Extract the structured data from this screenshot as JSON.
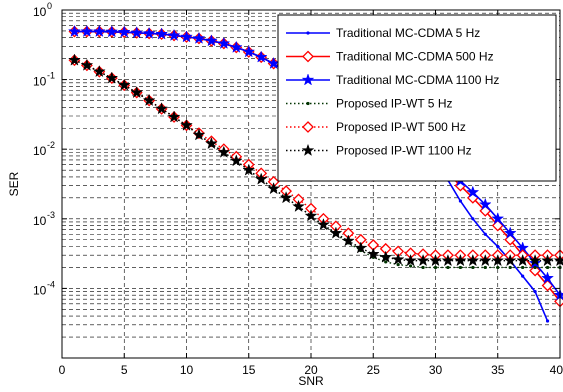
{
  "chart_data": {
    "type": "line",
    "title": "",
    "xlabel": "SNR",
    "ylabel": "SER",
    "xlim": [
      0,
      40
    ],
    "ylim_exponents": [
      -5,
      0
    ],
    "yscale": "log",
    "grid": true,
    "legend_position": "top-right",
    "x_ticks": [
      0,
      5,
      10,
      15,
      20,
      25,
      30,
      35,
      40
    ],
    "x_tick_labels": [
      "0",
      "5",
      "10",
      "15",
      "20",
      "25",
      "30",
      "35",
      "40"
    ],
    "y_tick_labels": [
      {
        "base": "10",
        "exp": "0",
        "value": 1
      },
      {
        "base": "10",
        "exp": "-1",
        "value": 0.1
      },
      {
        "base": "10",
        "exp": "-2",
        "value": 0.01
      },
      {
        "base": "10",
        "exp": "-3",
        "value": 0.001
      },
      {
        "base": "10",
        "exp": "-4",
        "value": 0.0001
      }
    ],
    "x": [
      1,
      2,
      3,
      4,
      5,
      6,
      7,
      8,
      9,
      10,
      11,
      12,
      13,
      14,
      15,
      16,
      17,
      18,
      19,
      20,
      21,
      22,
      23,
      24,
      25,
      26,
      27,
      28,
      29,
      30,
      31,
      32,
      33,
      34,
      35,
      36,
      37,
      38,
      39,
      40
    ],
    "series": [
      {
        "name": "Traditional MC-CDMA 5 Hz",
        "color": "#0000ff",
        "line": "solid",
        "marker": "dot",
        "values": [
          0.49,
          0.49,
          0.49,
          0.485,
          0.48,
          0.47,
          0.46,
          0.45,
          0.43,
          0.41,
          0.39,
          0.36,
          0.33,
          0.29,
          0.25,
          0.21,
          0.17,
          0.13,
          0.1,
          0.075,
          0.055,
          0.04,
          0.028,
          0.02,
          0.016,
          0.013,
          0.011,
          0.009,
          0.0082,
          0.0068,
          0.0036,
          0.0018,
          0.001,
          0.0006,
          0.0004,
          0.00025,
          0.00015,
          9e-05,
          3.4e-05,
          null
        ]
      },
      {
        "name": "Traditional MC-CDMA 500 Hz",
        "color": "#ff0000",
        "line": "solid",
        "marker": "diamond",
        "values": [
          0.49,
          0.49,
          0.49,
          0.485,
          0.48,
          0.47,
          0.46,
          0.45,
          0.43,
          0.41,
          0.39,
          0.36,
          0.33,
          0.29,
          0.25,
          0.21,
          0.17,
          0.13,
          0.1,
          0.075,
          0.055,
          0.04,
          0.028,
          0.02,
          0.016,
          0.013,
          0.011,
          0.009,
          0.0082,
          0.0068,
          0.0045,
          0.003,
          0.002,
          0.0013,
          0.0008,
          0.0005,
          0.0003,
          0.00018,
          0.00011,
          6.5e-05
        ]
      },
      {
        "name": "Traditional MC-CDMA 1100 Hz",
        "color": "#0000ff",
        "line": "solid",
        "marker": "star",
        "values": [
          0.49,
          0.49,
          0.49,
          0.485,
          0.48,
          0.47,
          0.46,
          0.45,
          0.43,
          0.41,
          0.39,
          0.36,
          0.33,
          0.29,
          0.25,
          0.21,
          0.17,
          0.13,
          0.1,
          0.075,
          0.055,
          0.04,
          0.028,
          0.02,
          0.016,
          0.013,
          0.011,
          0.009,
          0.0082,
          0.0068,
          0.005,
          0.0035,
          0.0024,
          0.0016,
          0.001,
          0.00062,
          0.00038,
          0.00023,
          0.00014,
          8e-05
        ]
      },
      {
        "name": "Proposed IP-WT 5 Hz",
        "color": "#003300",
        "line": "dotted",
        "marker": "dot",
        "values": [
          0.19,
          0.16,
          0.13,
          0.105,
          0.083,
          0.065,
          0.05,
          0.038,
          0.029,
          0.022,
          0.016,
          0.012,
          0.009,
          0.0068,
          0.005,
          0.0037,
          0.0027,
          0.002,
          0.0015,
          0.0011,
          0.0008,
          0.0006,
          0.00045,
          0.00035,
          0.00028,
          0.00024,
          0.00022,
          0.00021,
          0.0002,
          0.0002,
          0.0002,
          0.0002,
          0.0002,
          0.0002,
          0.0002,
          0.0002,
          0.0002,
          0.0002,
          0.0002,
          0.0002
        ]
      },
      {
        "name": "Proposed IP-WT 500 Hz",
        "color": "#ff0000",
        "line": "dotted",
        "marker": "diamond",
        "values": [
          0.19,
          0.16,
          0.13,
          0.105,
          0.083,
          0.065,
          0.05,
          0.038,
          0.029,
          0.022,
          0.017,
          0.013,
          0.01,
          0.0078,
          0.006,
          0.0045,
          0.0034,
          0.0025,
          0.0019,
          0.0014,
          0.001,
          0.00078,
          0.00062,
          0.0005,
          0.00042,
          0.00037,
          0.00034,
          0.00032,
          0.00031,
          0.0003,
          0.0003,
          0.0003,
          0.0003,
          0.0003,
          0.0003,
          0.0003,
          0.0003,
          0.0003,
          0.0003,
          0.0003
        ]
      },
      {
        "name": "Proposed IP-WT 1100 Hz",
        "color": "#000000",
        "line": "dotted",
        "marker": "star",
        "values": [
          0.19,
          0.16,
          0.13,
          0.105,
          0.083,
          0.065,
          0.05,
          0.038,
          0.029,
          0.022,
          0.016,
          0.012,
          0.009,
          0.0068,
          0.005,
          0.0037,
          0.0027,
          0.002,
          0.0015,
          0.0011,
          0.00082,
          0.00062,
          0.00048,
          0.00038,
          0.00031,
          0.00028,
          0.00026,
          0.00025,
          0.00025,
          0.00025,
          0.00025,
          0.00025,
          0.00025,
          0.00025,
          0.00025,
          0.00025,
          0.00025,
          0.00025,
          0.00025,
          0.00025
        ]
      }
    ]
  }
}
